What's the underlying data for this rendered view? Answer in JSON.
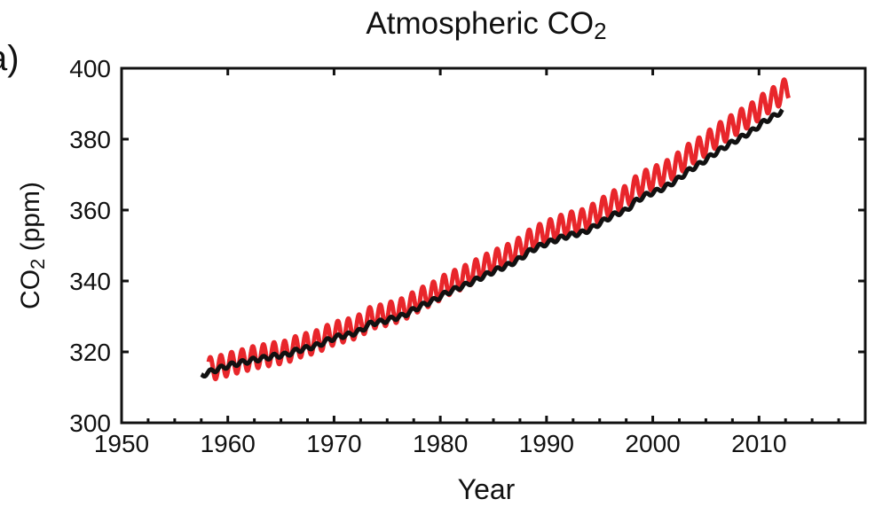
{
  "panel_label": "a)",
  "chart_data": {
    "type": "line",
    "title": "Atmospheric CO",
    "title_subscript": "2",
    "xlabel": "Year",
    "ylabel": "CO",
    "ylabel_subscript": "2",
    "ylabel_unit": " (ppm)",
    "xlim": [
      1950,
      2020
    ],
    "ylim": [
      300,
      400
    ],
    "x_ticks": [
      1950,
      1960,
      1970,
      1980,
      1990,
      2000,
      2010
    ],
    "x_tick_labels": [
      "1950",
      "1960",
      "1970",
      "1980",
      "1990",
      "2000",
      "2010"
    ],
    "x_minor_tick_step": 2.5,
    "y_ticks": [
      300,
      320,
      340,
      360,
      380,
      400
    ],
    "y_tick_labels": [
      "300",
      "320",
      "340",
      "360",
      "380",
      "400"
    ],
    "grid": false,
    "legend": "none",
    "series": [
      {
        "color": "#e8262b",
        "x_range": [
          1958.2,
          2012.8
        ],
        "seasonal_amplitude_ppm": 3.2,
        "years": [
          1958,
          1959,
          1960,
          1961,
          1962,
          1963,
          1964,
          1965,
          1966,
          1967,
          1968,
          1969,
          1970,
          1971,
          1972,
          1973,
          1974,
          1975,
          1976,
          1977,
          1978,
          1979,
          1980,
          1981,
          1982,
          1983,
          1984,
          1985,
          1986,
          1987,
          1988,
          1989,
          1990,
          1991,
          1992,
          1993,
          1994,
          1995,
          1996,
          1997,
          1998,
          1999,
          2000,
          2001,
          2002,
          2003,
          2004,
          2005,
          2006,
          2007,
          2008,
          2009,
          2010,
          2011,
          2012,
          2013
        ],
        "values": [
          315.3,
          316.0,
          316.9,
          317.6,
          318.5,
          319.0,
          319.6,
          320.0,
          321.4,
          322.2,
          323.0,
          324.6,
          325.7,
          326.3,
          327.5,
          329.7,
          330.2,
          331.1,
          332.0,
          333.8,
          335.4,
          336.8,
          338.8,
          340.1,
          341.5,
          343.1,
          344.7,
          346.1,
          347.4,
          349.2,
          351.6,
          353.1,
          354.4,
          355.6,
          356.5,
          357.1,
          358.8,
          360.8,
          362.6,
          363.7,
          366.7,
          368.4,
          369.6,
          371.1,
          373.3,
          375.8,
          377.5,
          379.8,
          381.9,
          383.8,
          385.6,
          387.4,
          389.9,
          391.7,
          393.9,
          396.0
        ]
      },
      {
        "color": "#111111",
        "x_range": [
          1957.5,
          2012.2
        ],
        "seasonal_amplitude_ppm": 0.6,
        "years": [
          1957,
          1958,
          1959,
          1960,
          1961,
          1962,
          1963,
          1964,
          1965,
          1966,
          1967,
          1968,
          1969,
          1970,
          1971,
          1972,
          1973,
          1974,
          1975,
          1976,
          1977,
          1978,
          1979,
          1980,
          1981,
          1982,
          1983,
          1984,
          1985,
          1986,
          1987,
          1988,
          1989,
          1990,
          1991,
          1992,
          1993,
          1994,
          1995,
          1996,
          1997,
          1998,
          1999,
          2000,
          2001,
          2002,
          2003,
          2004,
          2005,
          2006,
          2007,
          2008,
          2009,
          2010,
          2011,
          2012,
          2013
        ],
        "values": [
          313.3,
          314.6,
          315.6,
          316.5,
          317.1,
          317.8,
          318.3,
          318.9,
          319.2,
          320.4,
          321.1,
          321.9,
          323.4,
          324.4,
          324.9,
          326.0,
          328.1,
          328.5,
          329.4,
          330.2,
          331.9,
          333.4,
          334.7,
          336.5,
          337.8,
          339.0,
          340.5,
          342.0,
          343.4,
          344.6,
          346.3,
          348.6,
          350.0,
          351.2,
          352.3,
          353.1,
          353.7,
          355.3,
          357.2,
          358.9,
          359.9,
          362.8,
          364.4,
          365.5,
          367.0,
          369.0,
          371.4,
          373.1,
          375.3,
          377.3,
          379.1,
          380.8,
          382.6,
          385.0,
          386.6,
          388.7,
          390.8
        ]
      }
    ]
  }
}
